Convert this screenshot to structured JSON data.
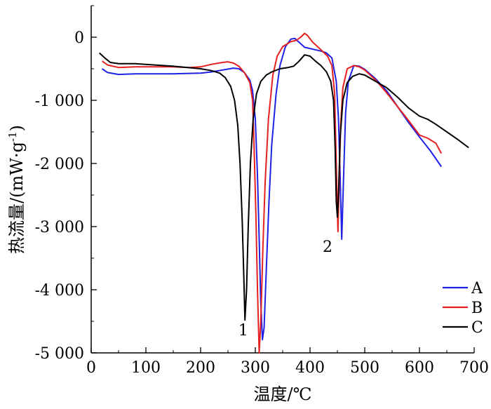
{
  "chart_data": {
    "type": "line",
    "xlabel": "温度/℃",
    "ylabel_main": "热流量/(mW·g",
    "ylabel_sup": "-1",
    "ylabel_end": ")",
    "xlim": [
      0,
      700
    ],
    "ylim": [
      -5000,
      500
    ],
    "x_ticks": [
      0,
      100,
      200,
      300,
      400,
      500,
      600,
      700
    ],
    "x_tick_labels": [
      "0",
      "100",
      "200",
      "300",
      "400",
      "500",
      "600",
      "700"
    ],
    "y_ticks": [
      0,
      -1000,
      -2000,
      -3000,
      -4000,
      -5000
    ],
    "y_tick_labels": [
      "0",
      "-1 000",
      "-2 000",
      "-3 000",
      "-4 000",
      "-5 000"
    ],
    "grid": false,
    "legend_position": "bottom-right",
    "annotations": [
      {
        "text": "1",
        "x": 278,
        "y": -4720
      },
      {
        "text": "2",
        "x": 432,
        "y": -3400
      }
    ],
    "series": [
      {
        "name": "A",
        "color": "#1f1fe6",
        "points": [
          [
            20,
            -500
          ],
          [
            30,
            -560
          ],
          [
            50,
            -590
          ],
          [
            80,
            -580
          ],
          [
            150,
            -580
          ],
          [
            200,
            -570
          ],
          [
            220,
            -550
          ],
          [
            240,
            -520
          ],
          [
            260,
            -490
          ],
          [
            270,
            -500
          ],
          [
            280,
            -560
          ],
          [
            290,
            -680
          ],
          [
            295,
            -850
          ],
          [
            300,
            -1300
          ],
          [
            304,
            -2200
          ],
          [
            307,
            -3200
          ],
          [
            310,
            -4200
          ],
          [
            313,
            -4790
          ],
          [
            316,
            -4600
          ],
          [
            320,
            -3700
          ],
          [
            325,
            -2600
          ],
          [
            330,
            -1700
          ],
          [
            338,
            -900
          ],
          [
            345,
            -450
          ],
          [
            355,
            -150
          ],
          [
            365,
            -30
          ],
          [
            372,
            -20
          ],
          [
            380,
            -80
          ],
          [
            390,
            -160
          ],
          [
            400,
            -180
          ],
          [
            420,
            -220
          ],
          [
            430,
            -250
          ],
          [
            440,
            -330
          ],
          [
            448,
            -700
          ],
          [
            452,
            -1300
          ],
          [
            455,
            -2200
          ],
          [
            458,
            -3200
          ],
          [
            461,
            -2300
          ],
          [
            465,
            -1200
          ],
          [
            470,
            -700
          ],
          [
            480,
            -450
          ],
          [
            490,
            -460
          ],
          [
            500,
            -510
          ],
          [
            520,
            -660
          ],
          [
            540,
            -850
          ],
          [
            560,
            -1100
          ],
          [
            580,
            -1350
          ],
          [
            600,
            -1580
          ],
          [
            620,
            -1800
          ],
          [
            640,
            -2050
          ]
        ]
      },
      {
        "name": "B",
        "color": "#e61f1f",
        "points": [
          [
            20,
            -380
          ],
          [
            30,
            -440
          ],
          [
            50,
            -480
          ],
          [
            80,
            -470
          ],
          [
            150,
            -470
          ],
          [
            180,
            -480
          ],
          [
            200,
            -470
          ],
          [
            220,
            -430
          ],
          [
            240,
            -400
          ],
          [
            250,
            -390
          ],
          [
            260,
            -410
          ],
          [
            270,
            -460
          ],
          [
            280,
            -560
          ],
          [
            290,
            -720
          ],
          [
            295,
            -1000
          ],
          [
            298,
            -1800
          ],
          [
            301,
            -2800
          ],
          [
            304,
            -4000
          ],
          [
            307,
            -5000
          ],
          [
            310,
            -4500
          ],
          [
            314,
            -3300
          ],
          [
            318,
            -2300
          ],
          [
            324,
            -1300
          ],
          [
            332,
            -600
          ],
          [
            340,
            -300
          ],
          [
            350,
            -150
          ],
          [
            365,
            -70
          ],
          [
            375,
            -50
          ],
          [
            383,
            0
          ],
          [
            390,
            60
          ],
          [
            395,
            30
          ],
          [
            405,
            -80
          ],
          [
            420,
            -200
          ],
          [
            432,
            -300
          ],
          [
            440,
            -450
          ],
          [
            445,
            -900
          ],
          [
            448,
            -2000
          ],
          [
            451,
            -3080
          ],
          [
            453,
            -2400
          ],
          [
            456,
            -1400
          ],
          [
            460,
            -800
          ],
          [
            468,
            -500
          ],
          [
            480,
            -450
          ],
          [
            490,
            -470
          ],
          [
            500,
            -520
          ],
          [
            520,
            -680
          ],
          [
            540,
            -880
          ],
          [
            560,
            -1100
          ],
          [
            580,
            -1320
          ],
          [
            600,
            -1550
          ],
          [
            615,
            -1600
          ],
          [
            630,
            -1680
          ],
          [
            640,
            -1840
          ]
        ]
      },
      {
        "name": "C",
        "color": "#000000",
        "points": [
          [
            15,
            -250
          ],
          [
            25,
            -330
          ],
          [
            35,
            -400
          ],
          [
            50,
            -420
          ],
          [
            80,
            -420
          ],
          [
            150,
            -460
          ],
          [
            200,
            -500
          ],
          [
            220,
            -530
          ],
          [
            235,
            -570
          ],
          [
            245,
            -640
          ],
          [
            255,
            -780
          ],
          [
            262,
            -1000
          ],
          [
            268,
            -1400
          ],
          [
            272,
            -2000
          ],
          [
            276,
            -2900
          ],
          [
            279,
            -3800
          ],
          [
            281,
            -4480
          ],
          [
            284,
            -4000
          ],
          [
            287,
            -3000
          ],
          [
            291,
            -2000
          ],
          [
            296,
            -1300
          ],
          [
            302,
            -900
          ],
          [
            310,
            -700
          ],
          [
            320,
            -600
          ],
          [
            330,
            -550
          ],
          [
            345,
            -500
          ],
          [
            360,
            -480
          ],
          [
            370,
            -460
          ],
          [
            380,
            -380
          ],
          [
            390,
            -280
          ],
          [
            400,
            -300
          ],
          [
            410,
            -380
          ],
          [
            420,
            -450
          ],
          [
            430,
            -550
          ],
          [
            438,
            -700
          ],
          [
            443,
            -1000
          ],
          [
            446,
            -1800
          ],
          [
            448,
            -2600
          ],
          [
            450,
            -2850
          ],
          [
            452,
            -2500
          ],
          [
            455,
            -1600
          ],
          [
            460,
            -1000
          ],
          [
            468,
            -720
          ],
          [
            478,
            -620
          ],
          [
            490,
            -580
          ],
          [
            500,
            -600
          ],
          [
            520,
            -700
          ],
          [
            540,
            -800
          ],
          [
            560,
            -950
          ],
          [
            580,
            -1120
          ],
          [
            600,
            -1250
          ],
          [
            615,
            -1300
          ],
          [
            630,
            -1380
          ],
          [
            650,
            -1500
          ],
          [
            670,
            -1620
          ],
          [
            690,
            -1750
          ]
        ]
      }
    ]
  }
}
